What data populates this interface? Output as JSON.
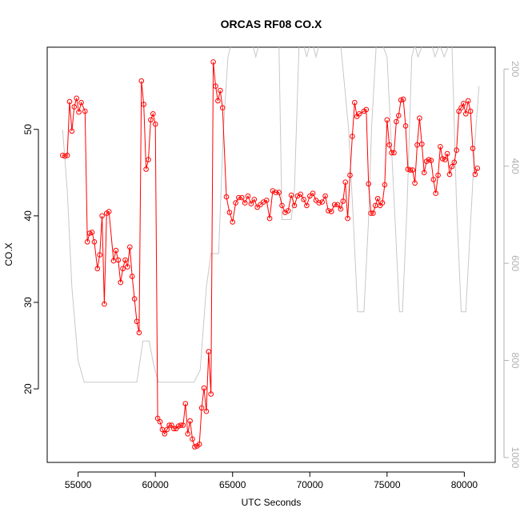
{
  "chart_data": {
    "type": "line",
    "title": "ORCAS RF08 CO.X",
    "xlabel": "UTC Seconds",
    "ylabel": "CO.X",
    "xlim": [
      53000,
      82000
    ],
    "ylim": [
      11.5,
      59.5
    ],
    "y2lim": [
      1010,
      155
    ],
    "x_ticks": [
      55000,
      60000,
      65000,
      70000,
      75000,
      80000
    ],
    "x_tick_labels": [
      "55000",
      "60000",
      "65000",
      "70000",
      "75000",
      "80000"
    ],
    "y_ticks": [
      20,
      30,
      40,
      50
    ],
    "y_tick_labels": [
      "20",
      "30",
      "40",
      "50"
    ],
    "y2_ticks": [
      200,
      400,
      600,
      800,
      1000
    ],
    "y2_tick_labels": [
      "200",
      "400",
      "600",
      "800",
      "1000"
    ],
    "grid": false,
    "series": [
      {
        "role": "CO.X",
        "color": "#ff0000",
        "marker": "open-circle",
        "x": [
          54000,
          54150,
          54300,
          54450,
          54600,
          54750,
          54900,
          55050,
          55200,
          55450,
          55600,
          55750,
          55900,
          56050,
          56250,
          56400,
          56550,
          56700,
          56850,
          57000,
          57300,
          57450,
          57600,
          57750,
          57900,
          58050,
          58200,
          58350,
          58500,
          58650,
          58800,
          58950,
          59100,
          59250,
          59400,
          59550,
          59700,
          59850,
          60000,
          60150,
          60300,
          60450,
          60600,
          60750,
          60900,
          61050,
          61200,
          61350,
          61500,
          61650,
          61800,
          61950,
          62100,
          62250,
          62400,
          62550,
          62700,
          62850,
          63000,
          63150,
          63300,
          63450,
          63600,
          63750,
          63900,
          64050,
          64200,
          64350,
          64600,
          64800,
          65000,
          65200,
          65400,
          65600,
          65800,
          66000,
          66200,
          66400,
          66600,
          66800,
          67000,
          67200,
          67400,
          67600,
          67800,
          68000,
          68200,
          68400,
          68600,
          68800,
          69000,
          69200,
          69400,
          69600,
          69800,
          70000,
          70200,
          70400,
          70600,
          70800,
          71000,
          71200,
          71400,
          71600,
          71800,
          72000,
          72150,
          72300,
          72450,
          72600,
          72750,
          72900,
          73050,
          73200,
          73500,
          73650,
          73800,
          73950,
          74100,
          74250,
          74400,
          74550,
          74700,
          74850,
          75000,
          75150,
          75300,
          75450,
          75600,
          75750,
          75900,
          76050,
          76200,
          76350,
          76500,
          76650,
          76800,
          76950,
          77100,
          77250,
          77400,
          77550,
          77700,
          77850,
          78000,
          78150,
          78300,
          78450,
          78600,
          78750,
          78900,
          79050,
          79200,
          79350,
          79500,
          79650,
          79800,
          79950,
          80100,
          80250,
          80400,
          80550,
          80700,
          80850
        ],
        "y": [
          47.0,
          46.9,
          47.0,
          53.2,
          49.8,
          52.6,
          53.6,
          52.0,
          53.1,
          52.1,
          37.0,
          38.0,
          38.1,
          37.0,
          33.9,
          35.5,
          40.0,
          29.8,
          40.3,
          40.5,
          34.8,
          36.0,
          34.9,
          32.3,
          33.9,
          34.9,
          34.1,
          36.4,
          33.0,
          30.4,
          27.8,
          26.5,
          55.6,
          52.9,
          45.4,
          46.5,
          51.1,
          51.8,
          50.6,
          16.6,
          16.2,
          15.3,
          14.8,
          15.3,
          15.8,
          15.8,
          15.4,
          15.4,
          15.7,
          15.8,
          15.8,
          18.3,
          14.8,
          16.3,
          14.2,
          13.3,
          13.4,
          13.6,
          17.8,
          20.1,
          17.4,
          24.3,
          19.4,
          57.8,
          55.0,
          53.3,
          54.5,
          52.5,
          42.2,
          40.4,
          39.3,
          41.5,
          42.1,
          42.1,
          41.5,
          42.3,
          41.4,
          41.9,
          41.0,
          41.3,
          41.6,
          41.8,
          39.7,
          42.9,
          42.7,
          42.7,
          41.2,
          40.4,
          40.6,
          42.4,
          41.2,
          42.3,
          42.5,
          41.9,
          41.2,
          42.3,
          42.6,
          41.8,
          41.5,
          41.6,
          42.3,
          40.6,
          40.5,
          41.3,
          41.3,
          40.8,
          41.7,
          43.9,
          39.7,
          44.7,
          49.2,
          53.1,
          51.5,
          51.8,
          52.1,
          52.3,
          43.7,
          40.3,
          40.3,
          41.2,
          42.0,
          41.2,
          41.5,
          43.6,
          51.1,
          48.2,
          47.3,
          47.3,
          50.9,
          51.6,
          53.4,
          53.5,
          50.4,
          45.4,
          45.3,
          45.3,
          43.8,
          48.2,
          51.3,
          48.3,
          45.0,
          46.3,
          46.5,
          46.4,
          44.2,
          42.6,
          44.7,
          48.0,
          46.6,
          46.5,
          47.2,
          44.8,
          45.7,
          46.2,
          47.6,
          52.1,
          52.5,
          53.0,
          51.8,
          53.3,
          52.1,
          47.8,
          44.8,
          45.5
        ]
      },
      {
        "role": "right-axis",
        "color": "#c8c8c8",
        "marker": "none",
        "x": [
          54000,
          54300,
          54600,
          55000,
          55400,
          56000,
          57000,
          58000,
          58800,
          59200,
          59600,
          59900,
          60200,
          61000,
          62000,
          62500,
          62900,
          63300,
          63600,
          63800,
          64100,
          64400,
          64700,
          64900,
          65200,
          66300,
          66500,
          66700,
          67000,
          67400,
          67800,
          68000,
          68200,
          68800,
          69000,
          69300,
          69600,
          69800,
          70000,
          70200,
          70400,
          70600,
          71000,
          71500,
          72000,
          72500,
          72800,
          73100,
          73500,
          73800,
          74000,
          74300,
          74700,
          75000,
          75500,
          75800,
          76000,
          76300,
          76600,
          76800,
          77000,
          77300,
          77600,
          77900,
          78100,
          78400,
          78700,
          79000,
          79200,
          79500,
          79800,
          80100,
          80400,
          80700,
          80950
        ],
        "y": [
          325,
          450,
          650,
          800,
          845,
          845,
          845,
          845,
          845,
          760,
          760,
          810,
          845,
          845,
          845,
          845,
          820,
          650,
          580,
          580,
          580,
          330,
          175,
          150,
          150,
          150,
          175,
          150,
          150,
          150,
          150,
          150,
          510,
          510,
          450,
          150,
          150,
          175,
          150,
          150,
          175,
          150,
          150,
          150,
          150,
          320,
          500,
          700,
          700,
          510,
          320,
          150,
          150,
          175,
          500,
          700,
          700,
          480,
          175,
          150,
          175,
          150,
          150,
          150,
          175,
          150,
          175,
          150,
          150,
          480,
          700,
          700,
          520,
          345,
          235
        ]
      }
    ]
  }
}
